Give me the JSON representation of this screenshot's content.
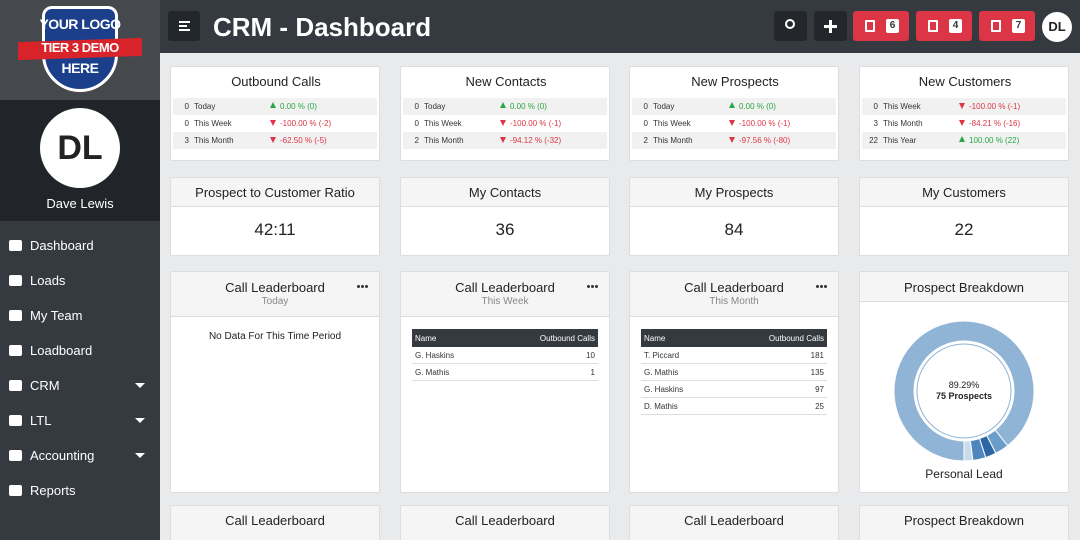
{
  "logo": {
    "lines": [
      "YOUR LOGO",
      "TIER 3 DEMO",
      "HERE"
    ]
  },
  "user": {
    "initials": "DL",
    "name": "Dave Lewis"
  },
  "nav": [
    {
      "label": "Dashboard",
      "caret": false
    },
    {
      "label": "Loads",
      "caret": false
    },
    {
      "label": "My Team",
      "caret": false
    },
    {
      "label": "Loadboard",
      "caret": false
    },
    {
      "label": "CRM",
      "caret": true
    },
    {
      "label": "LTL",
      "caret": true
    },
    {
      "label": "Accounting",
      "caret": true
    },
    {
      "label": "Reports",
      "caret": false
    }
  ],
  "header": {
    "title": "CRM - Dashboard",
    "badges": [
      "6",
      "4",
      "7"
    ],
    "initials": "DL"
  },
  "stats": [
    {
      "title": "Outbound Calls",
      "rows": [
        {
          "count": "0",
          "period": "Today",
          "change": "0.00 % (0)",
          "trend": "up"
        },
        {
          "count": "0",
          "period": "This Week",
          "change": "-100.00 % (-2)",
          "trend": "down"
        },
        {
          "count": "3",
          "period": "This Month",
          "change": "-62.50 % (-5)",
          "trend": "down"
        }
      ]
    },
    {
      "title": "New Contacts",
      "rows": [
        {
          "count": "0",
          "period": "Today",
          "change": "0.00 % (0)",
          "trend": "up"
        },
        {
          "count": "0",
          "period": "This Week",
          "change": "-100.00 % (-1)",
          "trend": "down"
        },
        {
          "count": "2",
          "period": "This Month",
          "change": "-94.12 % (-32)",
          "trend": "down"
        }
      ]
    },
    {
      "title": "New Prospects",
      "rows": [
        {
          "count": "0",
          "period": "Today",
          "change": "0.00 % (0)",
          "trend": "up"
        },
        {
          "count": "0",
          "period": "This Week",
          "change": "-100.00 % (-1)",
          "trend": "down"
        },
        {
          "count": "2",
          "period": "This Month",
          "change": "-97.56 % (-80)",
          "trend": "down"
        }
      ]
    },
    {
      "title": "New Customers",
      "rows": [
        {
          "count": "0",
          "period": "This Week",
          "change": "-100.00 % (-1)",
          "trend": "down"
        },
        {
          "count": "3",
          "period": "This Month",
          "change": "-84.21 % (-16)",
          "trend": "down"
        },
        {
          "count": "22",
          "period": "This Year",
          "change": "100.00 % (22)",
          "trend": "up"
        }
      ]
    }
  ],
  "kpis": [
    {
      "title": "Prospect to Customer Ratio",
      "value": "42:11"
    },
    {
      "title": "My Contacts",
      "value": "36"
    },
    {
      "title": "My Prospects",
      "value": "84"
    },
    {
      "title": "My Customers",
      "value": "22"
    }
  ],
  "leaderboards": [
    {
      "title": "Call Leaderboard",
      "period": "Today",
      "empty": "No Data For This Time Period"
    },
    {
      "title": "Call Leaderboard",
      "period": "This Week",
      "columns": [
        "Name",
        "Outbound Calls"
      ],
      "rows": [
        [
          "G. Haskins",
          "10"
        ],
        [
          "G. Mathis",
          "1"
        ]
      ]
    },
    {
      "title": "Call Leaderboard",
      "period": "This Month",
      "columns": [
        "Name",
        "Outbound Calls"
      ],
      "rows": [
        [
          "T. Piccard",
          "181"
        ],
        [
          "G. Mathis",
          "135"
        ],
        [
          "G. Haskins",
          "97"
        ],
        [
          "D. Mathis",
          "25"
        ]
      ]
    }
  ],
  "prospect_breakdown": {
    "title": "Prospect Breakdown",
    "center_percent": "89.29%",
    "center_label": "75 Prospects",
    "legend": "Personal Lead",
    "segments": [
      {
        "value": 89.29,
        "color": "#90b4d6"
      },
      {
        "value": 3.2,
        "color": "#6b9dcb"
      },
      {
        "value": 2.5,
        "color": "#2d67a3"
      },
      {
        "value": 3.0,
        "color": "#4f86bd"
      },
      {
        "value": 2.01,
        "color": "#c9dbec"
      }
    ]
  },
  "bottom_titles": [
    "Call Leaderboard",
    "Call Leaderboard",
    "Call Leaderboard",
    "Prospect Breakdown"
  ]
}
